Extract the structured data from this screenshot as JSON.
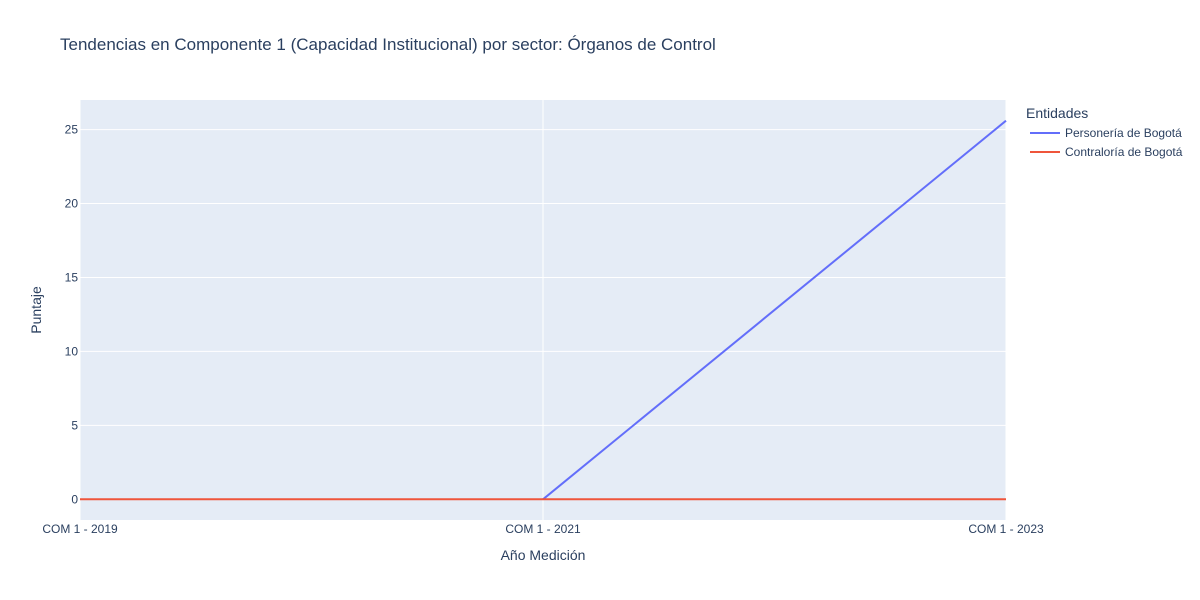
{
  "chart_data": {
    "type": "line",
    "title": "Tendencias en Componente 1 (Capacidad Institucional) por sector: Órganos de Control",
    "xlabel": "Año Medición",
    "ylabel": "Puntaje",
    "categories": [
      "COM 1 - 2019",
      "COM 1 - 2021",
      "COM 1 - 2023"
    ],
    "ylim": [
      -1.4,
      27
    ],
    "yticks": [
      0,
      5,
      10,
      15,
      20,
      25
    ],
    "grid": true,
    "legend": {
      "title": "Entidades",
      "placement": "top-right"
    },
    "series": [
      {
        "name": "Personería de Bogotá",
        "values": [
          null,
          0,
          25.6
        ],
        "color": "#636efa"
      },
      {
        "name": "Contraloría de Bogotá",
        "values": [
          0,
          0,
          0
        ],
        "color": "#ef553b"
      }
    ],
    "plot_background": "#e5ecf6"
  }
}
